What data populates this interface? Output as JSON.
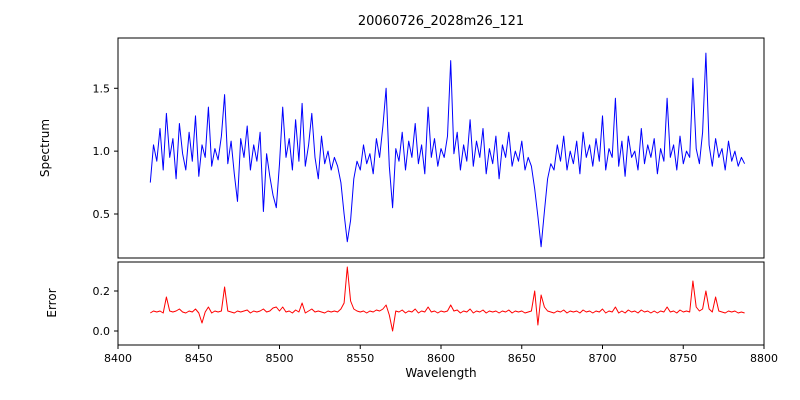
{
  "figure": {
    "background": "#ffffff"
  },
  "chart_data": {
    "type": "line",
    "title": "20060726_2028m26_121",
    "xlabel": "Wavelength",
    "xlim": [
      8400,
      8800
    ],
    "xticks": [
      8400,
      8450,
      8500,
      8550,
      8600,
      8650,
      8700,
      8750,
      8800
    ],
    "grid": false,
    "legend": "none",
    "x": [
      8420,
      8422,
      8424,
      8426,
      8428,
      8430,
      8432,
      8434,
      8436,
      8438,
      8440,
      8442,
      8444,
      8446,
      8448,
      8450,
      8452,
      8454,
      8456,
      8458,
      8460,
      8462,
      8464,
      8466,
      8468,
      8470,
      8472,
      8474,
      8476,
      8478,
      8480,
      8482,
      8484,
      8486,
      8488,
      8490,
      8492,
      8494,
      8496,
      8498,
      8500,
      8502,
      8504,
      8506,
      8508,
      8510,
      8512,
      8514,
      8516,
      8518,
      8520,
      8522,
      8524,
      8526,
      8528,
      8530,
      8532,
      8534,
      8536,
      8538,
      8540,
      8542,
      8544,
      8546,
      8548,
      8550,
      8552,
      8554,
      8556,
      8558,
      8560,
      8562,
      8564,
      8566,
      8568,
      8570,
      8572,
      8574,
      8576,
      8578,
      8580,
      8582,
      8584,
      8586,
      8588,
      8590,
      8592,
      8594,
      8596,
      8598,
      8600,
      8602,
      8604,
      8606,
      8608,
      8610,
      8612,
      8614,
      8616,
      8618,
      8620,
      8622,
      8624,
      8626,
      8628,
      8630,
      8632,
      8634,
      8636,
      8638,
      8640,
      8642,
      8644,
      8646,
      8648,
      8650,
      8652,
      8654,
      8656,
      8658,
      8660,
      8662,
      8664,
      8666,
      8668,
      8670,
      8672,
      8674,
      8676,
      8678,
      8680,
      8682,
      8684,
      8686,
      8688,
      8690,
      8692,
      8694,
      8696,
      8698,
      8700,
      8702,
      8704,
      8706,
      8708,
      8710,
      8712,
      8714,
      8716,
      8718,
      8720,
      8722,
      8724,
      8726,
      8728,
      8730,
      8732,
      8734,
      8736,
      8738,
      8740,
      8742,
      8744,
      8746,
      8748,
      8750,
      8752,
      8754,
      8756,
      8758,
      8760,
      8762,
      8764,
      8766,
      8768,
      8770,
      8772,
      8774,
      8776,
      8778,
      8780,
      8782,
      8784,
      8786,
      8788
    ],
    "subplots": [
      {
        "name": "Spectrum",
        "ylabel": "Spectrum",
        "color": "#0000ff",
        "ylim": [
          0.15,
          1.9
        ],
        "yticks": [
          0.5,
          1.0,
          1.5
        ],
        "values": [
          0.75,
          1.05,
          0.92,
          1.18,
          0.85,
          1.3,
          0.95,
          1.1,
          0.78,
          1.22,
          0.98,
          0.85,
          1.15,
          0.92,
          1.28,
          0.8,
          1.05,
          0.95,
          1.35,
          0.88,
          1.02,
          0.93,
          1.12,
          1.45,
          0.9,
          1.08,
          0.82,
          0.6,
          1.1,
          0.95,
          1.2,
          0.85,
          1.05,
          0.92,
          1.15,
          0.52,
          0.98,
          0.8,
          0.65,
          0.55,
          0.9,
          1.35,
          0.95,
          1.1,
          0.85,
          1.25,
          0.92,
          1.38,
          0.88,
          1.05,
          1.3,
          0.95,
          0.78,
          1.12,
          0.9,
          1.0,
          0.85,
          0.95,
          0.88,
          0.75,
          0.5,
          0.28,
          0.45,
          0.78,
          0.92,
          0.85,
          1.05,
          0.9,
          0.98,
          0.82,
          1.1,
          0.95,
          1.2,
          1.5,
          0.88,
          0.55,
          1.02,
          0.92,
          1.15,
          0.85,
          1.08,
          0.95,
          1.22,
          0.9,
          1.05,
          0.82,
          1.35,
          0.95,
          1.1,
          0.88,
          1.02,
          0.95,
          1.12,
          1.72,
          0.98,
          1.15,
          0.85,
          1.05,
          0.92,
          1.25,
          0.88,
          1.08,
          0.95,
          1.18,
          0.82,
          1.02,
          0.9,
          1.12,
          0.78,
          1.05,
          0.95,
          1.15,
          0.88,
          1.0,
          0.92,
          1.08,
          0.85,
          0.95,
          0.88,
          0.7,
          0.48,
          0.24,
          0.52,
          0.78,
          0.9,
          0.85,
          1.05,
          0.92,
          1.12,
          0.85,
          1.0,
          0.9,
          1.08,
          0.82,
          1.15,
          0.95,
          1.05,
          0.88,
          1.1,
          0.92,
          1.28,
          0.85,
          1.02,
          0.95,
          1.42,
          0.88,
          1.08,
          0.8,
          1.12,
          0.95,
          1.0,
          0.85,
          1.18,
          0.9,
          1.05,
          0.95,
          1.1,
          0.82,
          1.02,
          0.92,
          1.42,
          0.95,
          1.05,
          0.85,
          1.12,
          0.9,
          1.0,
          0.95,
          1.58,
          1.02,
          0.9,
          1.15,
          1.78,
          1.05,
          0.88,
          1.1,
          0.95,
          1.02,
          0.85,
          1.08,
          0.92,
          1.0,
          0.88,
          0.95,
          0.9
        ]
      },
      {
        "name": "Error",
        "ylabel": "Error",
        "color": "#ff0000",
        "ylim": [
          -0.07,
          0.345
        ],
        "yticks": [
          0.0,
          0.2
        ],
        "values": [
          0.09,
          0.1,
          0.095,
          0.1,
          0.09,
          0.17,
          0.1,
          0.095,
          0.1,
          0.11,
          0.095,
          0.09,
          0.1,
          0.095,
          0.11,
          0.09,
          0.04,
          0.095,
          0.12,
          0.09,
          0.1,
          0.095,
          0.1,
          0.22,
          0.1,
          0.095,
          0.09,
          0.1,
          0.095,
          0.1,
          0.105,
          0.09,
          0.1,
          0.095,
          0.1,
          0.11,
          0.095,
          0.1,
          0.115,
          0.12,
          0.1,
          0.12,
          0.095,
          0.1,
          0.09,
          0.105,
          0.095,
          0.14,
          0.09,
          0.1,
          0.11,
          0.095,
          0.1,
          0.095,
          0.09,
          0.1,
          0.095,
          0.1,
          0.095,
          0.11,
          0.14,
          0.32,
          0.15,
          0.11,
          0.1,
          0.095,
          0.1,
          0.09,
          0.1,
          0.095,
          0.105,
          0.1,
          0.11,
          0.13,
          0.08,
          0.0,
          0.1,
          0.095,
          0.105,
          0.09,
          0.1,
          0.095,
          0.11,
          0.09,
          0.1,
          0.095,
          0.12,
          0.095,
          0.1,
          0.09,
          0.1,
          0.095,
          0.1,
          0.13,
          0.1,
          0.105,
          0.09,
          0.1,
          0.095,
          0.11,
          0.09,
          0.1,
          0.095,
          0.105,
          0.09,
          0.1,
          0.095,
          0.1,
          0.09,
          0.1,
          0.095,
          0.105,
          0.09,
          0.1,
          0.095,
          0.1,
          0.09,
          0.095,
          0.1,
          0.2,
          0.03,
          0.18,
          0.12,
          0.1,
          0.095,
          0.09,
          0.1,
          0.095,
          0.105,
          0.09,
          0.1,
          0.095,
          0.1,
          0.09,
          0.105,
          0.095,
          0.1,
          0.09,
          0.1,
          0.095,
          0.11,
          0.09,
          0.1,
          0.095,
          0.12,
          0.09,
          0.1,
          0.09,
          0.105,
          0.095,
          0.1,
          0.09,
          0.105,
          0.095,
          0.1,
          0.09,
          0.1,
          0.09,
          0.1,
          0.095,
          0.12,
          0.095,
          0.1,
          0.09,
          0.105,
          0.095,
          0.1,
          0.095,
          0.25,
          0.12,
          0.1,
          0.11,
          0.2,
          0.11,
          0.095,
          0.17,
          0.1,
          0.095,
          0.09,
          0.1,
          0.095,
          0.1,
          0.09,
          0.095,
          0.09
        ]
      }
    ]
  }
}
